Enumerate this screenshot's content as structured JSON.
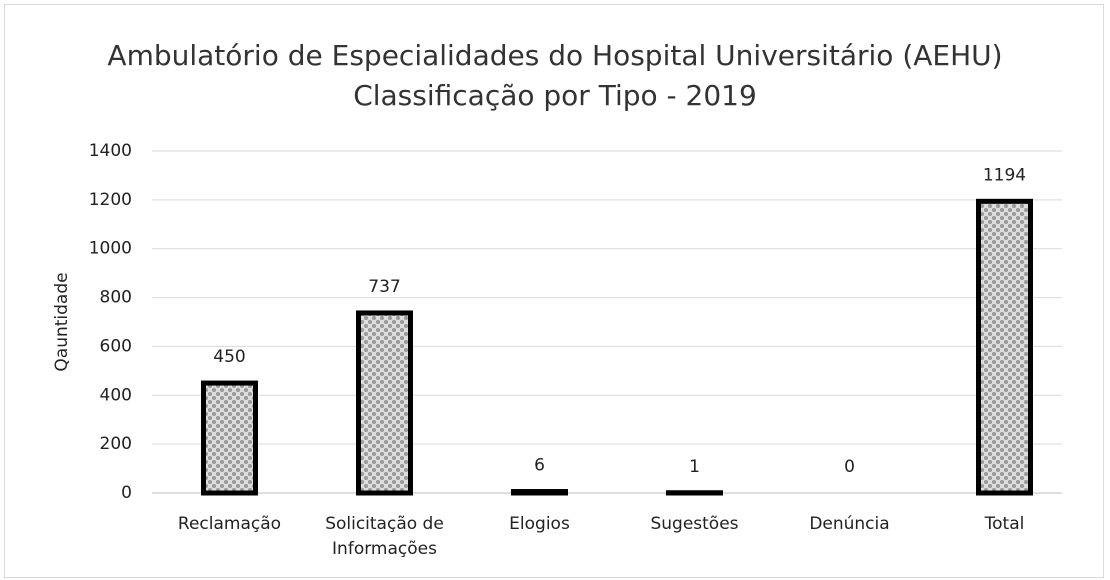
{
  "chart_data": {
    "type": "bar",
    "title": "Ambulatório de Especialidades do Hospital Universitário (AEHU) Classificação por Tipo - 2019",
    "y_label": "Qauntidade",
    "categories": [
      "Reclamação",
      "Solicitação de Informações",
      "Elogios",
      "Sugestões",
      "Denúncia",
      "Total"
    ],
    "values": [
      450,
      737,
      6,
      1,
      0,
      1194
    ],
    "color": "#b0b0b0",
    "ylim": [
      0,
      1400
    ],
    "yticks": [
      0,
      200,
      400,
      600,
      800,
      1000,
      1200,
      1400
    ],
    "grid": true
  }
}
